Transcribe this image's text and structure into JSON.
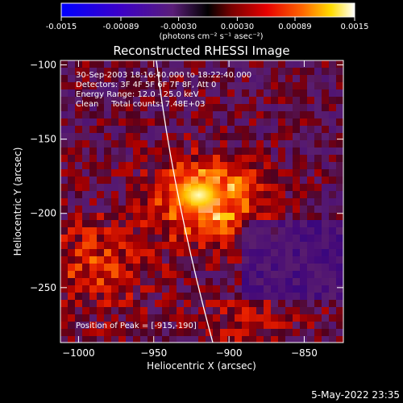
{
  "colorbar": {
    "tick_labels": [
      "-0.0015",
      "-0.00089",
      "-0.00030",
      "0.00030",
      "0.00089",
      "0.0015"
    ],
    "tick_values": [
      -0.0015,
      -0.00089,
      -0.0003,
      0.0003,
      0.00089,
      0.0015
    ],
    "range": [
      -0.0015,
      0.0015
    ],
    "units_label": "(photons cm⁻² s⁻¹ asec⁻²)"
  },
  "chart_data": {
    "type": "heatmap",
    "title": "Reconstructed RHESSI Image",
    "xlabel": "Heliocentric X (arcsec)",
    "ylabel": "Heliocentric Y (arcsec)",
    "xlim": [
      -1012,
      -824
    ],
    "ylim": [
      -287,
      -97
    ],
    "x_ticks": [
      -1000,
      -950,
      -900,
      -850
    ],
    "y_ticks": [
      -100,
      -150,
      -200,
      -250
    ],
    "x_tick_labels": [
      "−1000",
      "−950",
      "−900",
      "−850"
    ],
    "y_tick_labels": [
      "−100",
      "−150",
      "−200",
      "−250"
    ],
    "colormap": "rhessi-blue-purple-red-yellow-white",
    "peak_position": [
      -915,
      -190
    ],
    "annotations": [
      "30-Sep-2003 18:16:40.000 to 18:22:40.000",
      "Detectors: 3F 4F 5F 6F 7F 8F, Att 0",
      "Energy Range: 12.0 - 25.0 keV",
      "Clean     Total counts: 7.48E+03",
      "Position of Peak = [-915,-190]"
    ]
  },
  "footer": {
    "timestamp": "5-May-2022 23:35"
  }
}
